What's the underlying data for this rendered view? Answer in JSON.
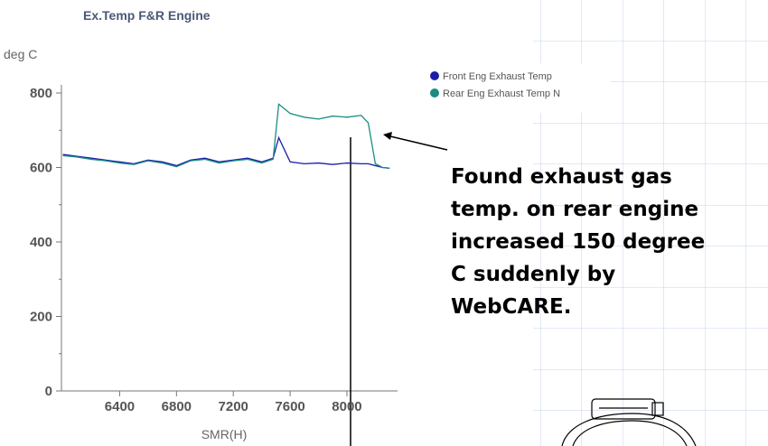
{
  "chart_data": {
    "type": "line",
    "title": "Ex.Temp F&R Engine",
    "ylabel": "deg C",
    "xlabel": "SMR(H)",
    "x": [
      6000,
      6100,
      6200,
      6300,
      6400,
      6500,
      6600,
      6700,
      6800,
      6900,
      7000,
      7100,
      7200,
      7300,
      7400,
      7480,
      7520,
      7600,
      7700,
      7800,
      7900,
      8000,
      8100,
      8150,
      8200,
      8250,
      8300
    ],
    "series": [
      {
        "name": "Front Eng Exhaust Temp",
        "color": "#1c1caa",
        "values": [
          635,
          630,
          625,
          620,
          615,
          610,
          620,
          615,
          605,
          620,
          625,
          615,
          620,
          625,
          615,
          625,
          680,
          615,
          610,
          612,
          608,
          612,
          610,
          610,
          605,
          600,
          598
        ]
      },
      {
        "name": "Rear Eng Exhaust Temp N",
        "color": "#1a8c82",
        "values": [
          632,
          628,
          622,
          618,
          612,
          608,
          618,
          612,
          602,
          618,
          622,
          612,
          618,
          622,
          612,
          622,
          770,
          745,
          735,
          730,
          738,
          735,
          740,
          720,
          610,
          600,
          598
        ]
      }
    ],
    "xlim": [
      5990,
      8350
    ],
    "ylim": [
      0,
      820
    ],
    "xticks": [
      6400,
      6800,
      7200,
      7600,
      8000
    ],
    "yticks": [
      0,
      200,
      400,
      600,
      800
    ],
    "yminor": [
      100,
      300,
      500,
      700
    ],
    "annotation": [
      "Found exhaust gas",
      "temp. on rear engine",
      "increased 150 degree",
      "C suddenly by",
      "WebCARE."
    ]
  }
}
